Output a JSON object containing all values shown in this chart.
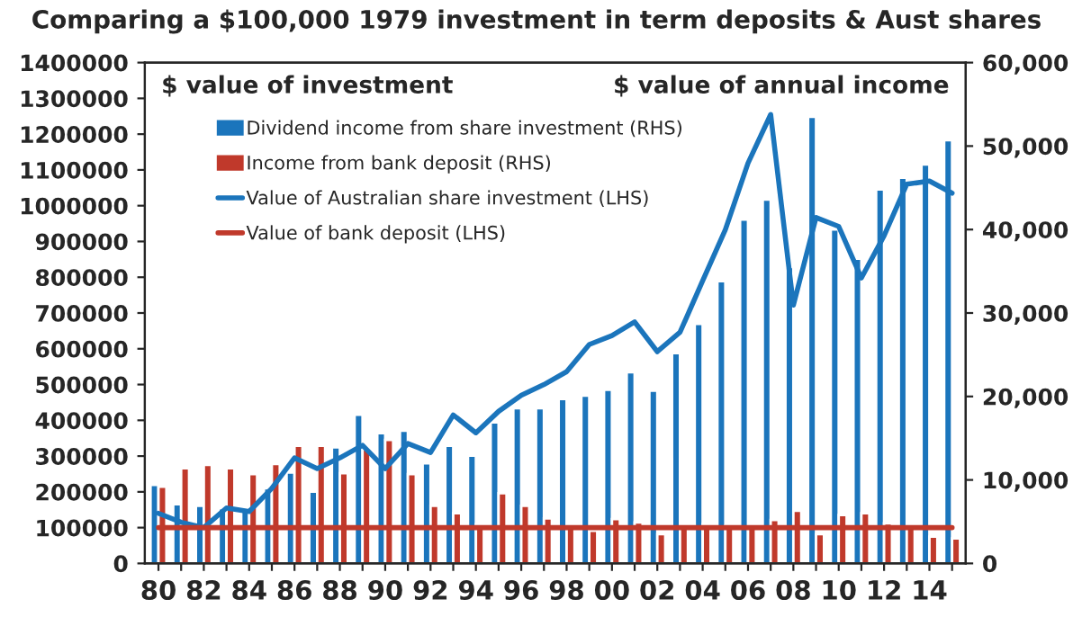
{
  "chart_data": {
    "type": "bar",
    "title": "Comparing a $100,000 1979 investment in term deposits & Aust shares",
    "categories": [
      "80",
      null,
      "82",
      null,
      "84",
      null,
      "86",
      null,
      "88",
      null,
      "90",
      null,
      "92",
      null,
      "94",
      null,
      "96",
      null,
      "98",
      null,
      "00",
      null,
      "02",
      null,
      "04",
      null,
      "06",
      null,
      "08",
      null,
      "10",
      null,
      "12",
      null,
      "14",
      null
    ],
    "series": [
      {
        "name": "Dividend income from share investment (RHS)",
        "axis": "y2",
        "color": "#1b75bc",
        "values": [
          9400,
          7100,
          6900,
          6600,
          6400,
          9000,
          10900,
          8600,
          13900,
          17800,
          15600,
          15900,
          12000,
          14100,
          12900,
          16900,
          18600,
          18600,
          19700,
          20100,
          20800,
          22900,
          20700,
          25200,
          28700,
          33800,
          41200,
          43600,
          35500,
          53500,
          40000,
          36500,
          44800,
          46200,
          47800,
          50700
        ]
      },
      {
        "name": "Income from bank deposit (RHS)",
        "axis": "y2",
        "color": "#c0392b",
        "values": [
          9200,
          11400,
          11800,
          11400,
          10700,
          11900,
          14100,
          14100,
          10800,
          13700,
          14800,
          10700,
          6900,
          6000,
          4700,
          8400,
          6900,
          5400,
          4300,
          3900,
          5300,
          4900,
          3500,
          4300,
          4700,
          4500,
          4300,
          5200,
          6300,
          3500,
          5800,
          6000,
          4800,
          4300,
          3200,
          3000
        ]
      },
      {
        "name": "Value of Australian share investment (LHS)",
        "type": "line",
        "axis": "y",
        "color": "#1b75bc",
        "values": [
          140000,
          115000,
          100000,
          155000,
          145000,
          210000,
          295000,
          265000,
          295000,
          330000,
          265000,
          335000,
          310000,
          415000,
          365000,
          425000,
          470000,
          500000,
          536000,
          612000,
          637000,
          675000,
          592000,
          646000,
          790000,
          933000,
          1119000,
          1255000,
          722000,
          967000,
          942000,
          798000,
          916000,
          1060000,
          1069000,
          1035000
        ]
      },
      {
        "name": "Value of bank deposit (LHS)",
        "type": "line",
        "axis": "y",
        "color": "#c0392b",
        "values": [
          100000,
          100000,
          100000,
          100000,
          100000,
          100000,
          100000,
          100000,
          100000,
          100000,
          100000,
          100000,
          100000,
          100000,
          100000,
          100000,
          100000,
          100000,
          100000,
          100000,
          100000,
          100000,
          100000,
          100000,
          100000,
          100000,
          100000,
          100000,
          100000,
          100000,
          100000,
          100000,
          100000,
          100000,
          100000,
          100000
        ]
      }
    ],
    "ylim": [
      0,
      1400000
    ],
    "yticks": [
      0,
      100000,
      200000,
      300000,
      400000,
      500000,
      600000,
      700000,
      800000,
      900000,
      1000000,
      1100000,
      1200000,
      1300000,
      1400000
    ],
    "y2lim": [
      0,
      60000
    ],
    "y2ticks": [
      {
        "value": 0,
        "label": "0"
      },
      {
        "value": 10000,
        "label": "10,000"
      },
      {
        "value": 20000,
        "label": "20,000"
      },
      {
        "value": 30000,
        "label": "30,000"
      },
      {
        "value": 40000,
        "label": "40,000"
      },
      {
        "value": 50000,
        "label": "50,000"
      },
      {
        "value": 60000,
        "label": "60,000"
      }
    ],
    "annotations": [
      "$ value of investment",
      "$ value of annual income"
    ],
    "legend": "top left",
    "grid": false
  }
}
